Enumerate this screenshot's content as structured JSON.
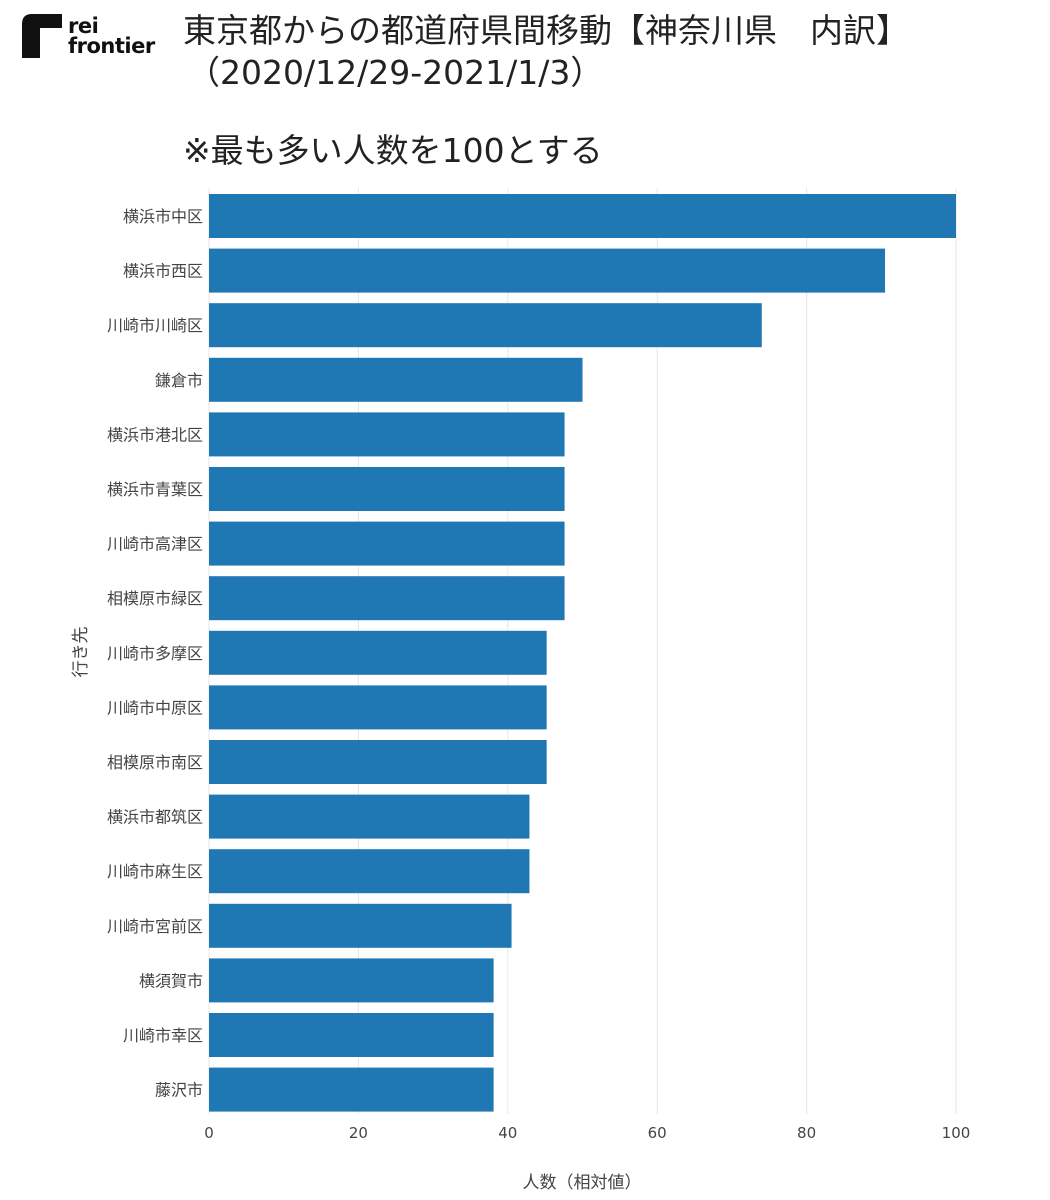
{
  "logo": {
    "line1": "rei",
    "line2": "frontier"
  },
  "header": {
    "title_line1": "東京都からの都道府県間移動【神奈川県　内訳】",
    "title_line2": "（2020/12/29-2021/1/3）",
    "subtitle": "※最も多い人数を100とする"
  },
  "chart_data": {
    "type": "bar",
    "orientation": "horizontal",
    "categories": [
      "横浜市中区",
      "横浜市西区",
      "川崎市川崎区",
      "鎌倉市",
      "横浜市港北区",
      "横浜市青葉区",
      "川崎市高津区",
      "相模原市緑区",
      "川崎市多摩区",
      "川崎市中原区",
      "相模原市南区",
      "横浜市都筑区",
      "川崎市麻生区",
      "川崎市宮前区",
      "横須賀市",
      "川崎市幸区",
      "藤沢市"
    ],
    "values": [
      100,
      90.5,
      74,
      50,
      47.6,
      47.6,
      47.6,
      47.6,
      45.2,
      45.2,
      45.2,
      42.9,
      42.9,
      40.5,
      38.1,
      38.1,
      38.1
    ],
    "xlabel": "人数（相対値）",
    "ylabel": "行き先",
    "xlim": [
      0,
      100
    ],
    "xticks": [
      0,
      20,
      40,
      60,
      80,
      100
    ],
    "grid": true,
    "bar_color": "#1f77b4",
    "grid_color": "#e6e6e6"
  }
}
